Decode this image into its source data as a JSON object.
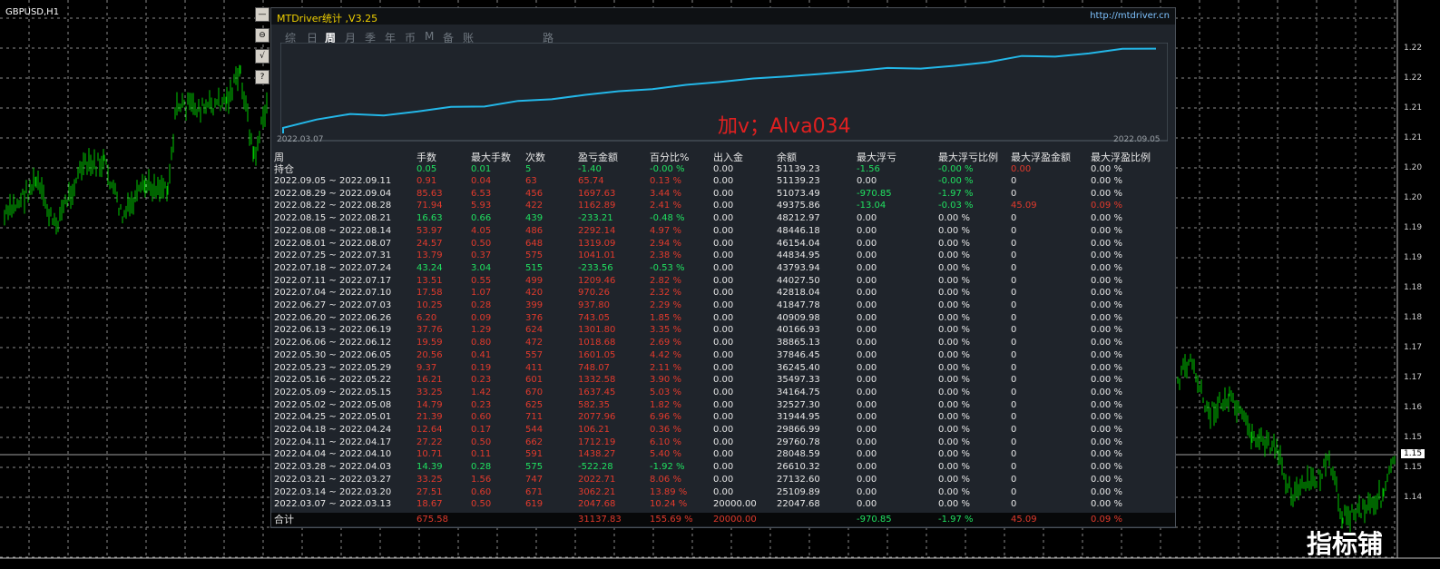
{
  "chart": {
    "symbol": "GBPUSD,H1",
    "current_price": "1.15",
    "price_labels": [
      "1.22",
      "1.22",
      "1.21",
      "1.21",
      "1.20",
      "1.20",
      "1.19",
      "1.19",
      "1.18",
      "1.18",
      "1.17",
      "1.17",
      "1.16",
      "1.15",
      "1.15",
      "1.14"
    ]
  },
  "side_buttons": [
    "—",
    "⊖",
    "√",
    "?"
  ],
  "panel": {
    "title": "MTDriver统计 ,V3.25",
    "url": "http://mtdriver.cn",
    "tabs": [
      "综",
      "日",
      "周",
      "月",
      "季",
      "年",
      "币",
      "M",
      "备",
      "账户",
      "路径"
    ],
    "active_tab": "周",
    "equity_start_label": "2022.03.07",
    "equity_end_label": "2022.09.05",
    "watermark": "加v；Alva034",
    "columns": [
      "周",
      "手数",
      "最大手数",
      "次数",
      "盈亏金额",
      "百分比%",
      "出入金",
      "余额",
      "最大浮亏",
      "最大浮亏比例",
      "最大浮盈金额",
      "最大浮盈比例"
    ],
    "holding": {
      "label": "持仓",
      "cells": [
        "0.05",
        "0.01",
        "5",
        "-1.40",
        "-0.00 %",
        "0.00",
        "51139.23",
        "-1.56",
        "-0.00 %",
        "0.00",
        "0.00 %"
      ]
    },
    "rows": [
      [
        "2022.09.05 ~ 2022.09.11",
        "0.91",
        "0.04",
        "63",
        "65.74",
        "0.13 %",
        "0.00",
        "51139.23",
        "0.00",
        "-0.00 %",
        "0",
        "0.00 %"
      ],
      [
        "2022.08.29 ~ 2022.09.04",
        "85.63",
        "6.53",
        "456",
        "1697.63",
        "3.44 %",
        "0.00",
        "51073.49",
        "-970.85",
        "-1.97 %",
        "0",
        "0.00 %"
      ],
      [
        "2022.08.22 ~ 2022.08.28",
        "71.94",
        "5.93",
        "422",
        "1162.89",
        "2.41 %",
        "0.00",
        "49375.86",
        "-13.04",
        "-0.03 %",
        "45.09",
        "0.09 %"
      ],
      [
        "2022.08.15 ~ 2022.08.21",
        "16.63",
        "0.66",
        "439",
        "-233.21",
        "-0.48 %",
        "0.00",
        "48212.97",
        "0.00",
        "0.00 %",
        "0",
        "0.00 %"
      ],
      [
        "2022.08.08 ~ 2022.08.14",
        "53.97",
        "4.05",
        "486",
        "2292.14",
        "4.97 %",
        "0.00",
        "48446.18",
        "0.00",
        "0.00 %",
        "0",
        "0.00 %"
      ],
      [
        "2022.08.01 ~ 2022.08.07",
        "24.57",
        "0.50",
        "648",
        "1319.09",
        "2.94 %",
        "0.00",
        "46154.04",
        "0.00",
        "0.00 %",
        "0",
        "0.00 %"
      ],
      [
        "2022.07.25 ~ 2022.07.31",
        "13.79",
        "0.37",
        "575",
        "1041.01",
        "2.38 %",
        "0.00",
        "44834.95",
        "0.00",
        "0.00 %",
        "0",
        "0.00 %"
      ],
      [
        "2022.07.18 ~ 2022.07.24",
        "43.24",
        "3.04",
        "515",
        "-233.56",
        "-0.53 %",
        "0.00",
        "43793.94",
        "0.00",
        "0.00 %",
        "0",
        "0.00 %"
      ],
      [
        "2022.07.11 ~ 2022.07.17",
        "13.51",
        "0.55",
        "499",
        "1209.46",
        "2.82 %",
        "0.00",
        "44027.50",
        "0.00",
        "0.00 %",
        "0",
        "0.00 %"
      ],
      [
        "2022.07.04 ~ 2022.07.10",
        "17.58",
        "1.07",
        "420",
        "970.26",
        "2.32 %",
        "0.00",
        "42818.04",
        "0.00",
        "0.00 %",
        "0",
        "0.00 %"
      ],
      [
        "2022.06.27 ~ 2022.07.03",
        "10.25",
        "0.28",
        "399",
        "937.80",
        "2.29 %",
        "0.00",
        "41847.78",
        "0.00",
        "0.00 %",
        "0",
        "0.00 %"
      ],
      [
        "2022.06.20 ~ 2022.06.26",
        "6.20",
        "0.09",
        "376",
        "743.05",
        "1.85 %",
        "0.00",
        "40909.98",
        "0.00",
        "0.00 %",
        "0",
        "0.00 %"
      ],
      [
        "2022.06.13 ~ 2022.06.19",
        "37.76",
        "1.29",
        "624",
        "1301.80",
        "3.35 %",
        "0.00",
        "40166.93",
        "0.00",
        "0.00 %",
        "0",
        "0.00 %"
      ],
      [
        "2022.06.06 ~ 2022.06.12",
        "19.59",
        "0.80",
        "472",
        "1018.68",
        "2.69 %",
        "0.00",
        "38865.13",
        "0.00",
        "0.00 %",
        "0",
        "0.00 %"
      ],
      [
        "2022.05.30 ~ 2022.06.05",
        "20.56",
        "0.41",
        "557",
        "1601.05",
        "4.42 %",
        "0.00",
        "37846.45",
        "0.00",
        "0.00 %",
        "0",
        "0.00 %"
      ],
      [
        "2022.05.23 ~ 2022.05.29",
        "9.37",
        "0.19",
        "411",
        "748.07",
        "2.11 %",
        "0.00",
        "36245.40",
        "0.00",
        "0.00 %",
        "0",
        "0.00 %"
      ],
      [
        "2022.05.16 ~ 2022.05.22",
        "16.21",
        "0.23",
        "601",
        "1332.58",
        "3.90 %",
        "0.00",
        "35497.33",
        "0.00",
        "0.00 %",
        "0",
        "0.00 %"
      ],
      [
        "2022.05.09 ~ 2022.05.15",
        "33.25",
        "1.42",
        "670",
        "1637.45",
        "5.03 %",
        "0.00",
        "34164.75",
        "0.00",
        "0.00 %",
        "0",
        "0.00 %"
      ],
      [
        "2022.05.02 ~ 2022.05.08",
        "14.79",
        "0.23",
        "625",
        "582.35",
        "1.82 %",
        "0.00",
        "32527.30",
        "0.00",
        "0.00 %",
        "0",
        "0.00 %"
      ],
      [
        "2022.04.25 ~ 2022.05.01",
        "21.39",
        "0.60",
        "711",
        "2077.96",
        "6.96 %",
        "0.00",
        "31944.95",
        "0.00",
        "0.00 %",
        "0",
        "0.00 %"
      ],
      [
        "2022.04.18 ~ 2022.04.24",
        "12.64",
        "0.17",
        "544",
        "106.21",
        "0.36 %",
        "0.00",
        "29866.99",
        "0.00",
        "0.00 %",
        "0",
        "0.00 %"
      ],
      [
        "2022.04.11 ~ 2022.04.17",
        "27.22",
        "0.50",
        "662",
        "1712.19",
        "6.10 %",
        "0.00",
        "29760.78",
        "0.00",
        "0.00 %",
        "0",
        "0.00 %"
      ],
      [
        "2022.04.04 ~ 2022.04.10",
        "10.71",
        "0.11",
        "591",
        "1438.27",
        "5.40 %",
        "0.00",
        "28048.59",
        "0.00",
        "0.00 %",
        "0",
        "0.00 %"
      ],
      [
        "2022.03.28 ~ 2022.04.03",
        "14.39",
        "0.28",
        "575",
        "-522.28",
        "-1.92 %",
        "0.00",
        "26610.32",
        "0.00",
        "0.00 %",
        "0",
        "0.00 %"
      ],
      [
        "2022.03.21 ~ 2022.03.27",
        "33.25",
        "1.56",
        "747",
        "2022.71",
        "8.06 %",
        "0.00",
        "27132.60",
        "0.00",
        "0.00 %",
        "0",
        "0.00 %"
      ],
      [
        "2022.03.14 ~ 2022.03.20",
        "27.51",
        "0.60",
        "671",
        "3062.21",
        "13.89 %",
        "0.00",
        "25109.89",
        "0.00",
        "0.00 %",
        "0",
        "0.00 %"
      ],
      [
        "2022.03.07 ~ 2022.03.13",
        "18.67",
        "0.50",
        "619",
        "2047.68",
        "10.24 %",
        "20000.00",
        "22047.68",
        "0.00",
        "0.00 %",
        "0",
        "0.00 %"
      ]
    ],
    "total": {
      "label": "合计",
      "cells": [
        "675.58",
        "",
        "",
        "31137.83",
        "155.69 %",
        "20000.00",
        "",
        "-970.85",
        "-1.97 %",
        "45.09",
        "0.09 %"
      ]
    }
  },
  "brand": "指标铺",
  "colors": {
    "red": "#e23a2c",
    "green": "#20e060",
    "white": "#e6e6e6",
    "equity": "#23b7e8",
    "candle": "#00c800"
  }
}
